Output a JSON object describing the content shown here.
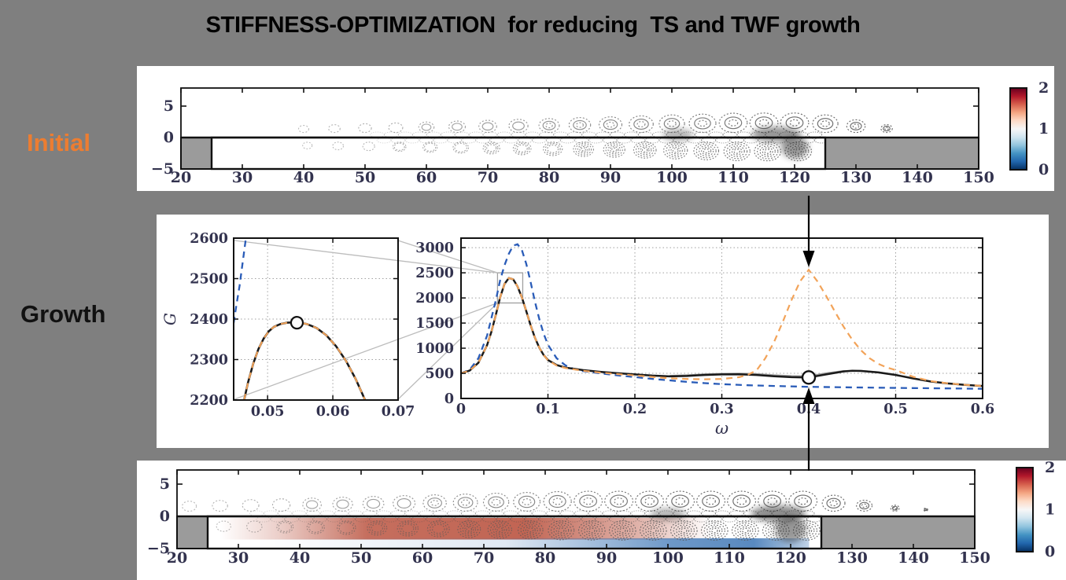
{
  "title": "STIFFNESS-OPTIMIZATION  for reducing  TS and TWF growth",
  "labels": {
    "initial": "Initial",
    "growth": "Growth"
  },
  "colors": {
    "background": "#7f7f7f",
    "panel": "#ffffff",
    "title_text": "#000000",
    "initial_label": "#ED7D31",
    "growth_label": "#111111",
    "tick_text": "#32324e",
    "curve_blue": "#2a5cb8",
    "curve_orange": "#f2a359",
    "curve_black": "#1a1a1a",
    "curve_gray": "#9a9a9a",
    "plate_gray": "#9b9b9b",
    "grid": "#a0a0a0",
    "connector": "#bcbcbc",
    "contour_stroke": "#585858",
    "red_shade": "#b23e28",
    "blue_shade": "#2f6cb0",
    "colorbar": [
      "#67001f",
      "#b2182b",
      "#d6604d",
      "#f4a582",
      "#fddbc7",
      "#f7f7f7",
      "#d1e5f0",
      "#92c5de",
      "#4393c3",
      "#2166ac",
      "#053061"
    ]
  },
  "chart_data": [
    {
      "id": "growth-main",
      "type": "line",
      "xlabel": "ω",
      "ylabel": "",
      "xlim": [
        0,
        0.6
      ],
      "ylim": [
        0,
        3190
      ],
      "xticks": [
        0,
        0.1,
        0.2,
        0.3,
        0.4,
        0.5,
        0.6
      ],
      "yticks": [
        0,
        500,
        1000,
        1500,
        2000,
        2500,
        3000
      ],
      "grid": true,
      "series": [
        {
          "name": "blue-dashed-reference",
          "color": "#2a5cb8",
          "style": "dashed",
          "lw": 2.3,
          "points": [
            [
              0,
              500
            ],
            [
              0.01,
              570
            ],
            [
              0.02,
              800
            ],
            [
              0.03,
              1250
            ],
            [
              0.04,
              1950
            ],
            [
              0.045,
              2350
            ],
            [
              0.05,
              2650
            ],
            [
              0.055,
              2880
            ],
            [
              0.06,
              3040
            ],
            [
              0.065,
              3070
            ],
            [
              0.07,
              2950
            ],
            [
              0.075,
              2680
            ],
            [
              0.08,
              2320
            ],
            [
              0.085,
              1930
            ],
            [
              0.09,
              1580
            ],
            [
              0.095,
              1290
            ],
            [
              0.1,
              1070
            ],
            [
              0.11,
              800
            ],
            [
              0.12,
              660
            ],
            [
              0.13,
              585
            ],
            [
              0.14,
              545
            ],
            [
              0.16,
              500
            ],
            [
              0.18,
              460
            ],
            [
              0.2,
              425
            ],
            [
              0.22,
              390
            ],
            [
              0.24,
              360
            ],
            [
              0.26,
              330
            ],
            [
              0.28,
              305
            ],
            [
              0.3,
              285
            ],
            [
              0.33,
              262
            ],
            [
              0.36,
              248
            ],
            [
              0.4,
              232
            ],
            [
              0.44,
              222
            ],
            [
              0.48,
              214
            ],
            [
              0.52,
              207
            ],
            [
              0.56,
              200
            ],
            [
              0.6,
              193
            ]
          ]
        },
        {
          "name": "gray-solid-intermediate",
          "color": "#9a9a9a",
          "style": "solid",
          "lw": 1.5,
          "points": [
            [
              0.24,
              455
            ],
            [
              0.26,
              468
            ],
            [
              0.28,
              487
            ],
            [
              0.3,
              497
            ],
            [
              0.32,
              501
            ],
            [
              0.34,
              492
            ],
            [
              0.36,
              468
            ],
            [
              0.38,
              452
            ],
            [
              0.4,
              447
            ],
            [
              0.42,
              506
            ],
            [
              0.44,
              552
            ],
            [
              0.46,
              557
            ],
            [
              0.48,
              527
            ],
            [
              0.5,
              477
            ]
          ]
        },
        {
          "name": "black-solid-optimized",
          "color": "#1a1a1a",
          "style": "solid",
          "lw": 2.5,
          "points": [
            [
              0,
              500
            ],
            [
              0.01,
              555
            ],
            [
              0.02,
              710
            ],
            [
              0.03,
              1060
            ],
            [
              0.035,
              1330
            ],
            [
              0.04,
              1660
            ],
            [
              0.045,
              2010
            ],
            [
              0.05,
              2280
            ],
            [
              0.055,
              2395
            ],
            [
              0.06,
              2370
            ],
            [
              0.065,
              2230
            ],
            [
              0.07,
              2010
            ],
            [
              0.075,
              1740
            ],
            [
              0.08,
              1460
            ],
            [
              0.085,
              1210
            ],
            [
              0.09,
              1010
            ],
            [
              0.095,
              865
            ],
            [
              0.1,
              765
            ],
            [
              0.11,
              665
            ],
            [
              0.12,
              615
            ],
            [
              0.14,
              565
            ],
            [
              0.16,
              530
            ],
            [
              0.18,
              502
            ],
            [
              0.2,
              478
            ],
            [
              0.22,
              455
            ],
            [
              0.24,
              440
            ],
            [
              0.26,
              448
            ],
            [
              0.28,
              468
            ],
            [
              0.3,
              478
            ],
            [
              0.32,
              482
            ],
            [
              0.34,
              468
            ],
            [
              0.36,
              442
            ],
            [
              0.38,
              424
            ],
            [
              0.4,
              418
            ],
            [
              0.42,
              478
            ],
            [
              0.44,
              538
            ],
            [
              0.45,
              552
            ],
            [
              0.46,
              548
            ],
            [
              0.48,
              518
            ],
            [
              0.5,
              468
            ],
            [
              0.52,
              398
            ],
            [
              0.54,
              338
            ],
            [
              0.56,
              298
            ],
            [
              0.58,
              270
            ],
            [
              0.6,
              248
            ]
          ]
        },
        {
          "name": "orange-dashed-initial-design",
          "color": "#f2a359",
          "style": "dashed",
          "lw": 2.2,
          "points": [
            [
              0,
              500
            ],
            [
              0.01,
              555
            ],
            [
              0.02,
              710
            ],
            [
              0.03,
              1060
            ],
            [
              0.035,
              1330
            ],
            [
              0.04,
              1660
            ],
            [
              0.045,
              2010
            ],
            [
              0.05,
              2280
            ],
            [
              0.055,
              2395
            ],
            [
              0.06,
              2370
            ],
            [
              0.065,
              2230
            ],
            [
              0.07,
              2010
            ],
            [
              0.075,
              1740
            ],
            [
              0.08,
              1460
            ],
            [
              0.085,
              1210
            ],
            [
              0.09,
              1010
            ],
            [
              0.095,
              865
            ],
            [
              0.1,
              760
            ],
            [
              0.11,
              655
            ],
            [
              0.12,
              605
            ],
            [
              0.14,
              552
            ],
            [
              0.16,
              515
            ],
            [
              0.18,
              485
            ],
            [
              0.2,
              458
            ],
            [
              0.22,
              428
            ],
            [
              0.24,
              402
            ],
            [
              0.26,
              388
            ],
            [
              0.28,
              382
            ],
            [
              0.3,
              388
            ],
            [
              0.32,
              424
            ],
            [
              0.33,
              470
            ],
            [
              0.34,
              560
            ],
            [
              0.35,
              800
            ],
            [
              0.36,
              1120
            ],
            [
              0.37,
              1520
            ],
            [
              0.38,
              1950
            ],
            [
              0.39,
              2330
            ],
            [
              0.4,
              2560
            ],
            [
              0.41,
              2330
            ],
            [
              0.42,
              2040
            ],
            [
              0.43,
              1730
            ],
            [
              0.44,
              1430
            ],
            [
              0.45,
              1170
            ],
            [
              0.46,
              960
            ],
            [
              0.47,
              800
            ],
            [
              0.48,
              690
            ],
            [
              0.49,
              615
            ],
            [
              0.5,
              565
            ],
            [
              0.52,
              432
            ],
            [
              0.54,
              345
            ],
            [
              0.56,
              300
            ],
            [
              0.58,
              270
            ],
            [
              0.6,
              248
            ]
          ]
        }
      ],
      "marker": {
        "x": 0.4,
        "y": 418
      },
      "zoom_rect": {
        "x": [
          0.042,
          0.071
        ],
        "y": [
          1900,
          2500
        ]
      },
      "annotations": [
        "arrow-down-from-initial-panel-to-orange-peak-at-0.4",
        "arrow-up-from-optimized-panel-to-black-marker-at-0.4"
      ]
    },
    {
      "id": "growth-inset",
      "type": "line",
      "xlabel": "",
      "ylabel": "G",
      "xlim": [
        0.0448,
        0.07
      ],
      "ylim": [
        2200,
        2600
      ],
      "xticks": [
        0.05,
        0.06,
        0.07
      ],
      "yticks": [
        2200,
        2300,
        2400,
        2500,
        2600
      ],
      "grid": true,
      "series": [
        {
          "name": "blue-dashed-reference",
          "color": "#2a5cb8",
          "style": "dashed",
          "lw": 2.3,
          "points": [
            [
              0.0448,
              2390
            ],
            [
              0.0452,
              2432
            ],
            [
              0.0457,
              2482
            ],
            [
              0.0462,
              2542
            ],
            [
              0.0468,
              2615
            ]
          ]
        },
        {
          "name": "black-solid-optimized",
          "color": "#1a1a1a",
          "style": "solid",
          "lw": 2.6,
          "points": [
            [
              0.0464,
              2200
            ],
            [
              0.047,
              2243
            ],
            [
              0.0478,
              2290
            ],
            [
              0.0486,
              2326
            ],
            [
              0.0494,
              2352
            ],
            [
              0.0502,
              2370
            ],
            [
              0.051,
              2381
            ],
            [
              0.052,
              2388
            ],
            [
              0.053,
              2391
            ],
            [
              0.0545,
              2392
            ],
            [
              0.056,
              2388
            ],
            [
              0.0575,
              2378
            ],
            [
              0.059,
              2360
            ],
            [
              0.0605,
              2333
            ],
            [
              0.062,
              2297
            ],
            [
              0.0635,
              2252
            ],
            [
              0.065,
              2198
            ]
          ]
        },
        {
          "name": "orange-dashed-initial-design",
          "color": "#f2a359",
          "style": "dashed",
          "lw": 2.1,
          "points": [
            [
              0.0464,
              2200
            ],
            [
              0.047,
              2243
            ],
            [
              0.0478,
              2290
            ],
            [
              0.0486,
              2326
            ],
            [
              0.0494,
              2352
            ],
            [
              0.0502,
              2370
            ],
            [
              0.051,
              2381
            ],
            [
              0.052,
              2388
            ],
            [
              0.053,
              2391
            ],
            [
              0.0545,
              2392
            ],
            [
              0.056,
              2388
            ],
            [
              0.0575,
              2378
            ],
            [
              0.059,
              2360
            ],
            [
              0.0605,
              2333
            ],
            [
              0.062,
              2297
            ],
            [
              0.0635,
              2252
            ],
            [
              0.065,
              2198
            ]
          ]
        }
      ],
      "marker": {
        "x": 0.0545,
        "y": 2391
      }
    },
    {
      "id": "contour-initial",
      "type": "contour",
      "xlim": [
        20,
        150
      ],
      "ylim": [
        -5,
        7.5
      ],
      "xticks": [
        20,
        30,
        40,
        50,
        60,
        70,
        80,
        90,
        100,
        110,
        120,
        130,
        140,
        150
      ],
      "yticks": [
        5,
        0,
        -5
      ],
      "colorbar": {
        "ticks": [
          2,
          1,
          0
        ],
        "colormap": "RdBu_r"
      },
      "plate_blocks": [
        [
          20,
          25
        ],
        [
          125,
          150
        ]
      ],
      "compliant_region": [
        25,
        125
      ],
      "waves": {
        "start": 40,
        "end": 135,
        "spacing": 5,
        "s0": 0.36,
        "sg": 0.045,
        "band": [
          52,
          124
        ]
      },
      "smudges": [
        {
          "x": 101,
          "y": 0.4,
          "rx": 2.5,
          "ry": 1.0,
          "o": 0.35
        },
        {
          "x": 117,
          "y": 0.5,
          "rx": 4.0,
          "ry": 1.2,
          "o": 0.5
        },
        {
          "x": 120,
          "y": -1.5,
          "rx": 2.2,
          "ry": 1.8,
          "o": 0.5
        }
      ]
    },
    {
      "id": "contour-optimized",
      "type": "contour",
      "xlim": [
        20,
        150
      ],
      "ylim": [
        -5,
        7.2
      ],
      "xticks": [
        20,
        30,
        40,
        50,
        60,
        70,
        80,
        90,
        100,
        110,
        120,
        130,
        140,
        150
      ],
      "yticks": [
        5,
        0,
        -5
      ],
      "colorbar": {
        "ticks": [
          2,
          1,
          0
        ],
        "colormap": "RdBu_r"
      },
      "plate_blocks": [
        [
          20,
          25
        ],
        [
          125,
          150
        ]
      ],
      "compliant_region": [
        25,
        125
      ],
      "waves": {
        "start": 22,
        "end": 145,
        "spacing": 5,
        "s0": 0.5,
        "sg": 0.04,
        "band": [
          33,
          124
        ]
      },
      "shading": {
        "red_region": [
          27,
          107
        ],
        "blue_region": [
          33,
          123
        ]
      },
      "smudges": [
        {
          "x": 100,
          "y": 0.3,
          "rx": 3.0,
          "ry": 1.0,
          "o": 0.35
        },
        {
          "x": 118,
          "y": 0.4,
          "rx": 4.5,
          "ry": 1.3,
          "o": 0.55
        },
        {
          "x": 120,
          "y": -2.0,
          "rx": 2.5,
          "ry": 2.0,
          "o": 0.5
        }
      ]
    }
  ]
}
